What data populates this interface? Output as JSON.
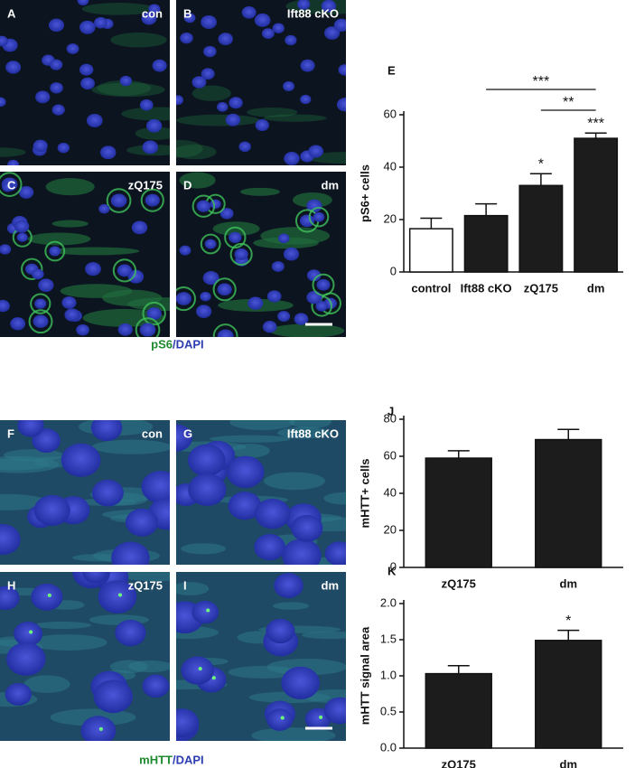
{
  "panels": [
    {
      "letter": "A",
      "label": "con"
    },
    {
      "letter": "B",
      "label": "Ift88 cKO"
    },
    {
      "letter": "C",
      "label": "zQ175"
    },
    {
      "letter": "D",
      "label": "dm"
    },
    {
      "letter": "F",
      "label": "con"
    },
    {
      "letter": "G",
      "label": "Ift88 cKO"
    },
    {
      "letter": "H",
      "label": "zQ175"
    },
    {
      "letter": "I",
      "label": "dm"
    }
  ],
  "caption_top": [
    "pS6",
    "/DAPI"
  ],
  "caption_bottom": [
    "mHTT",
    "/DAPI"
  ],
  "chart_data": [
    {
      "type": "bar",
      "panel": "E",
      "y_label": "pS6+ cells",
      "categories": [
        "control",
        "Ift88 cKO",
        "zQ175",
        "dm"
      ],
      "values": [
        16.5,
        21.5,
        33,
        51
      ],
      "errors": [
        4,
        4.5,
        4.5,
        2
      ],
      "colors": [
        "#ffffff",
        "#1c1c1c",
        "#1c1c1c",
        "#1c1c1c"
      ],
      "significance": [
        null,
        null,
        "*",
        "***"
      ],
      "comparisons": [
        {
          "label": "***",
          "from": "Ift88 cKO",
          "to": "dm"
        },
        {
          "label": "**",
          "from": "zQ175",
          "to": "dm"
        }
      ],
      "ylim": [
        0,
        60
      ],
      "yticks": [
        0,
        20,
        40,
        60
      ]
    },
    {
      "type": "bar",
      "panel": "J",
      "y_label": "mHTT+ cells",
      "categories": [
        "zQ175",
        "dm"
      ],
      "values": [
        59,
        69
      ],
      "errors": [
        4,
        5.5
      ],
      "colors": [
        "#1c1c1c",
        "#1c1c1c"
      ],
      "ylim": [
        0,
        80
      ],
      "yticks": [
        0,
        20,
        40,
        60,
        80
      ]
    },
    {
      "type": "bar",
      "panel": "K",
      "y_label": "mHTT signal area",
      "categories": [
        "zQ175",
        "dm"
      ],
      "values": [
        1.03,
        1.49
      ],
      "errors": [
        0.11,
        0.14
      ],
      "colors": [
        "#1c1c1c",
        "#1c1c1c"
      ],
      "significance": [
        null,
        "*"
      ],
      "ylim": [
        0,
        2
      ],
      "yticks": [
        {
          "value": 0,
          "label": "0.0"
        },
        0.5,
        {
          "value": 1,
          "label": "1.0"
        },
        1.5,
        {
          "value": 2,
          "label": "2.0"
        }
      ]
    }
  ]
}
